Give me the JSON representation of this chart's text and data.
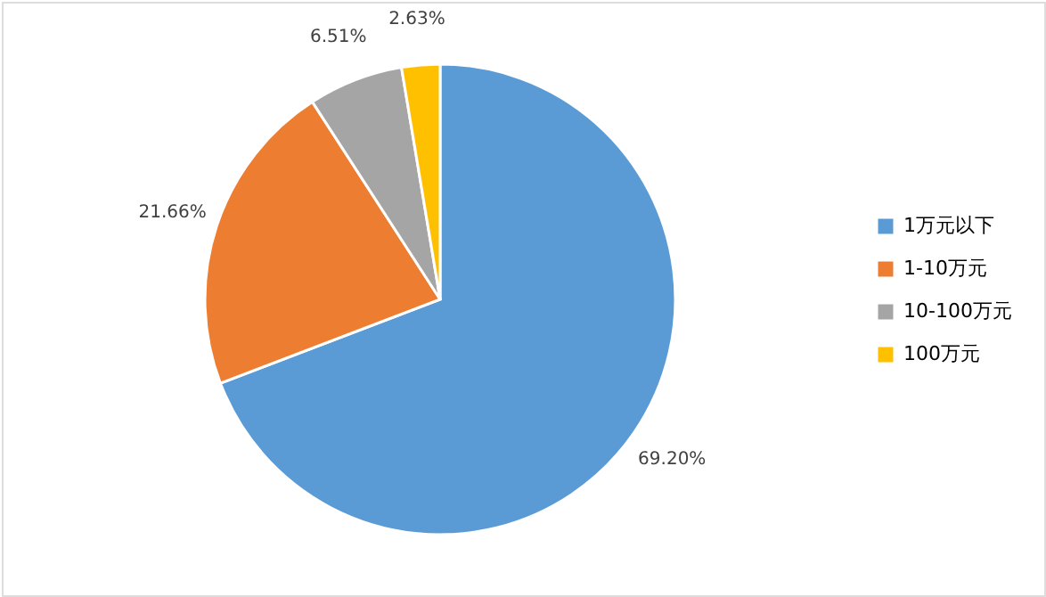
{
  "chart_data": {
    "type": "pie",
    "categories": [
      "1万元以下",
      "1-10万元",
      "10-100万元",
      "100万元"
    ],
    "values": [
      69.2,
      21.66,
      6.51,
      2.63
    ],
    "colors": [
      "#5b9bd5",
      "#ed7d31",
      "#a5a5a5",
      "#ffc000"
    ],
    "value_labels": [
      "69.20%",
      "21.66%",
      "6.51%",
      "2.63%"
    ],
    "legend": "right"
  }
}
